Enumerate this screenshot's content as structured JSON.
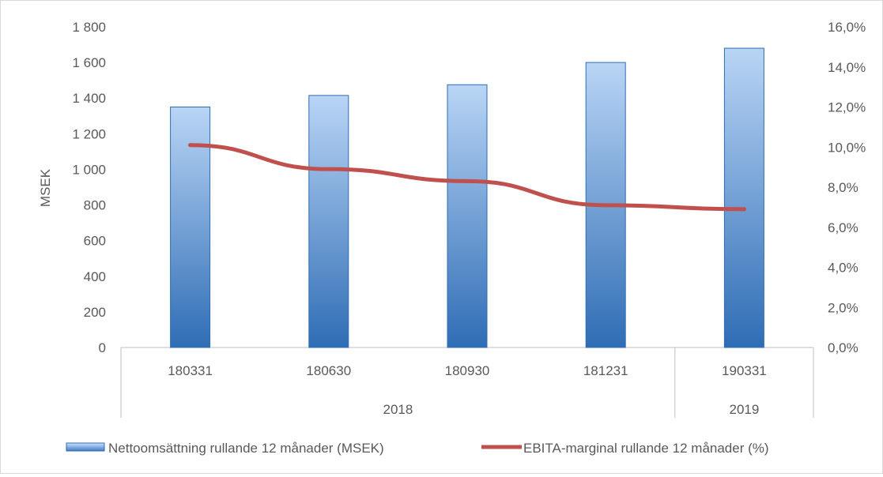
{
  "chart_data": {
    "type": "bar",
    "categories": [
      "180331",
      "180630",
      "180930",
      "181231",
      "190331"
    ],
    "category_groups": [
      {
        "label": "2018",
        "span": 4
      },
      {
        "label": "2019",
        "span": 1
      }
    ],
    "series": [
      {
        "name": "Nettoomsättning rullande 12 månader (MSEK)",
        "type": "bar",
        "axis": "left",
        "values": [
          1350,
          1415,
          1475,
          1600,
          1680
        ],
        "color": "#4a86cf"
      },
      {
        "name": "EBITA-marginal rullande 12 månader (%)",
        "type": "line",
        "axis": "right",
        "values": [
          10.1,
          8.9,
          8.3,
          7.1,
          6.9
        ],
        "color": "#c0504d"
      }
    ],
    "ylabel": "MSEK",
    "ylim": [
      0,
      1800
    ],
    "y_ticks": [
      "0",
      "200",
      "400",
      "600",
      "800",
      "1 000",
      "1 200",
      "1 400",
      "1 600",
      "1 800"
    ],
    "y2lim": [
      0,
      16
    ],
    "y2_ticks": [
      "0,0%",
      "2,0%",
      "4,0%",
      "6,0%",
      "8,0%",
      "10,0%",
      "12,0%",
      "14,0%",
      "16,0%"
    ],
    "grid": false,
    "legend_position": "bottom"
  }
}
